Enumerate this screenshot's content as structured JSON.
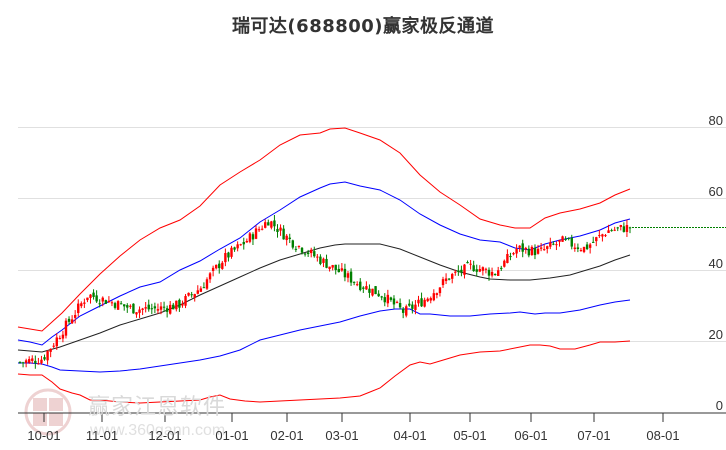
{
  "title": "瑞可达(688800)赢家极反通道",
  "watermark": {
    "brand": "赢家江恩软件",
    "url": "www.360gann.com",
    "seal": [
      "江",
      "赢",
      "恩",
      "家"
    ]
  },
  "colors": {
    "up": "#ff0000",
    "down": "#008000",
    "outer_band": "#ff0000",
    "inner_band": "#0000ff",
    "middle": "#000000",
    "last_price_line": "#008000",
    "grid": "#e0e0e0"
  },
  "chart_data": {
    "type": "candlestick+bands",
    "title": "瑞可达(688800)赢家极反通道",
    "xlabel": "",
    "ylabel": "",
    "ylim": [
      0,
      80
    ],
    "yticks": [
      0,
      20,
      40,
      60,
      80
    ],
    "xticks": [
      "10-01",
      "11-01",
      "12-01",
      "01-01",
      "02-01",
      "03-01",
      "04-01",
      "05-01",
      "06-01",
      "07-01",
      "08-01"
    ],
    "grid": true,
    "last_price": 51.5,
    "series": [
      {
        "name": "outer_upper_band",
        "color": "#ff0000",
        "x": [
          "09-15",
          "10-01",
          "10-15",
          "11-01",
          "11-15",
          "12-01",
          "12-15",
          "01-01",
          "01-15",
          "02-01",
          "02-15",
          "03-01",
          "03-15",
          "04-01",
          "04-15",
          "05-01",
          "05-15",
          "06-01",
          "06-15",
          "07-01",
          "07-15"
        ],
        "values": [
          24,
          23,
          27,
          31,
          36,
          40,
          44,
          48,
          52,
          57,
          66,
          70,
          78,
          80,
          76,
          69,
          60,
          51,
          53,
          57,
          62
        ]
      },
      {
        "name": "inner_upper_band",
        "color": "#0000ff",
        "values": [
          20,
          19,
          23,
          28,
          31,
          35,
          38,
          42,
          46,
          52,
          57,
          61,
          63,
          64.5,
          62,
          56,
          50,
          48,
          48,
          52,
          54
        ]
      },
      {
        "name": "middle_line",
        "color": "#000000",
        "values": [
          17,
          17,
          18,
          20,
          23,
          26,
          28,
          32,
          36,
          39,
          43,
          46,
          47,
          47,
          46,
          43,
          39,
          37,
          37,
          40,
          44
        ]
      },
      {
        "name": "inner_lower_band",
        "color": "#0000ff",
        "values": [
          14,
          13.5,
          12,
          11.5,
          12,
          13,
          14,
          16,
          18,
          20,
          22,
          24,
          26,
          28,
          29,
          27.5,
          27,
          28,
          28,
          30,
          31.5
        ]
      },
      {
        "name": "outer_lower_band",
        "color": "#ff0000",
        "values": [
          11,
          10.5,
          7,
          3.5,
          3,
          3,
          3.5,
          4,
          3,
          3.5,
          3.5,
          4.5,
          7,
          13,
          16,
          17,
          19,
          19.5,
          18.5,
          19.5,
          20
        ]
      },
      {
        "name": "price_close",
        "color": "#333333",
        "values": [
          14,
          15,
          24,
          33,
          31,
          29,
          29,
          30,
          35,
          43,
          48,
          54,
          48,
          44,
          40,
          36,
          33,
          28,
          32,
          38,
          41,
          39,
          46,
          45,
          48,
          46,
          51,
          52
        ]
      }
    ]
  },
  "y_axis": {
    "labels": [
      "80",
      "60",
      "40",
      "20",
      "0"
    ]
  },
  "x_axis": {
    "labels": [
      "10-01",
      "11-01",
      "12-01",
      "01-01",
      "02-01",
      "03-01",
      "04-01",
      "05-01",
      "06-01",
      "07-01",
      "08-01"
    ]
  }
}
